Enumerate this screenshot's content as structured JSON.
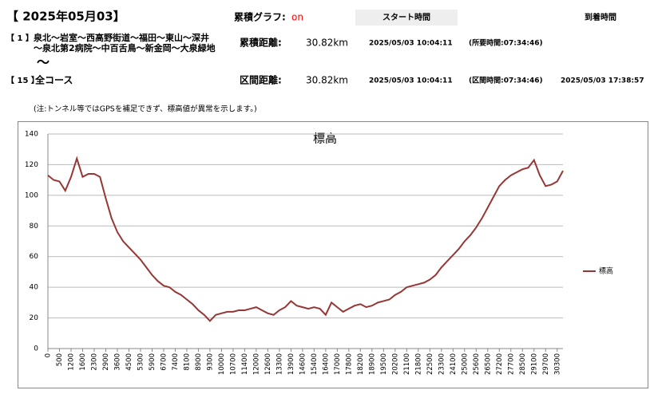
{
  "header": {
    "date": "【 2025年05月03】",
    "graph_label": "累積グラフ:",
    "graph_state": "on",
    "start_time_label": "スタート時間",
    "arrival_time_label": "到着時間",
    "note": "(注:トンネル等ではGPSを補足できず、標高値が異常を示します。)",
    "rows": [
      {
        "index": "【 1 】",
        "course": [
          "泉北～岩室～西高野街道～福田～東山～深井",
          "～泉北第2病院～中百舌鳥～新金岡～大泉緑地"
        ],
        "distance_label": "累積距離:",
        "distance": "30.82km",
        "start": "2025/05/03 10:04:11",
        "duration": "(所要時間:07:34:46)"
      },
      {
        "separator": "～"
      },
      {
        "index": "【 15 】",
        "course": [
          "全コース"
        ],
        "distance_label": "区間距離:",
        "distance": "30.82km",
        "start": "2025/05/03 10:04:11",
        "duration": "(区間時間:07:34:46)",
        "arrival": "2025/05/03 17:38:57"
      }
    ]
  },
  "chart_data": {
    "type": "line",
    "title": "標高",
    "categories": [
      "0",
      null,
      "500",
      null,
      "1200",
      null,
      "1600",
      null,
      "2300",
      null,
      "2900",
      null,
      "3600",
      null,
      "4500",
      null,
      "5300",
      null,
      "5900",
      null,
      "6700",
      null,
      "7400",
      null,
      "8100",
      null,
      "8900",
      null,
      "9300",
      null,
      "10000",
      null,
      "10700",
      null,
      "11400",
      null,
      "12000",
      null,
      "12600",
      null,
      "13300",
      null,
      "13900",
      null,
      "14600",
      null,
      "15400",
      null,
      "16400",
      null,
      "17000",
      null,
      "17800",
      null,
      "18200",
      null,
      "18900",
      null,
      "19500",
      null,
      "20200",
      null,
      "21100",
      null,
      "21800",
      null,
      "22500",
      null,
      "23300",
      null,
      "24100",
      null,
      "25000",
      null,
      "25600",
      null,
      "26500",
      null,
      "27200",
      null,
      "27700",
      null,
      "28500",
      null,
      "29100",
      null,
      "29700",
      null,
      "30300",
      null
    ],
    "series": [
      {
        "name": "標高",
        "color": "#953735",
        "values": [
          113,
          110,
          109,
          103,
          112,
          124,
          112,
          114,
          114,
          112,
          98,
          85,
          76,
          70,
          66,
          62,
          58,
          53,
          48,
          44,
          41,
          40,
          37,
          35,
          32,
          29,
          25,
          22,
          18,
          22,
          23,
          24,
          24,
          25,
          25,
          26,
          27,
          25,
          23,
          22,
          25,
          27,
          31,
          28,
          27,
          26,
          27,
          26,
          22,
          30,
          27,
          24,
          26,
          28,
          29,
          27,
          28,
          30,
          31,
          32,
          35,
          37,
          40,
          41,
          42,
          43,
          45,
          48,
          53,
          57,
          61,
          65,
          70,
          74,
          79,
          85,
          92,
          99,
          106,
          110,
          113,
          115,
          117,
          118,
          123,
          113,
          106,
          107,
          109,
          116
        ]
      }
    ],
    "ylim": [
      0,
      140
    ],
    "yticks": [
      0,
      20,
      40,
      60,
      80,
      100,
      120,
      140
    ],
    "grid": true,
    "legend": "right"
  }
}
